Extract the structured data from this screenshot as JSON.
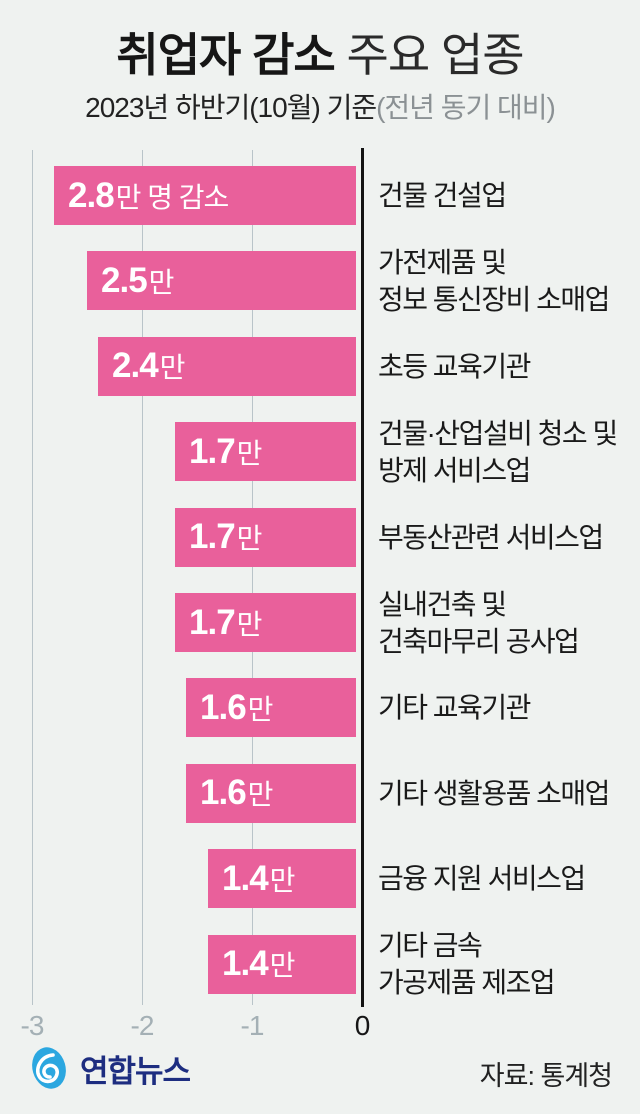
{
  "title": {
    "bold": "취업자 감소",
    "light": " 주요 업종"
  },
  "subtitle": {
    "main": "2023년 하반기(10월) 기준",
    "paren": "(전년 동기 대비)"
  },
  "colors": {
    "background": "#eff2f0",
    "bar": "#e9609b",
    "grid": "#b9c4c9",
    "axis": "#131313",
    "tick_muted": "#a4b0b5",
    "tick_zero": "#161616",
    "bar_text": "#ffffff",
    "logo_blue": "#2ba7e0",
    "logo_navy": "#1d2d80"
  },
  "chart_data": {
    "type": "bar",
    "orientation": "horizontal",
    "title": "취업자 감소 주요 업종",
    "subtitle": "2023년 하반기(10월) 기준(전년 동기 대비)",
    "unit": "만 명",
    "xlim": [
      -3.3,
      0
    ],
    "grid": true,
    "x_ticks": [
      {
        "label": "-3",
        "value": -3
      },
      {
        "label": "-2",
        "value": -2
      },
      {
        "label": "-1",
        "value": -1
      },
      {
        "label": "0",
        "value": 0
      }
    ],
    "bars": [
      {
        "value": -2.8,
        "label_value": "2.8",
        "label_suffix": "만 명 감소",
        "category_lines": [
          "건물 건설업"
        ]
      },
      {
        "value": -2.5,
        "label_value": "2.5",
        "label_suffix": "만",
        "category_lines": [
          "가전제품 및",
          "정보 통신장비 소매업"
        ]
      },
      {
        "value": -2.4,
        "label_value": "2.4",
        "label_suffix": "만",
        "category_lines": [
          "초등 교육기관"
        ]
      },
      {
        "value": -1.7,
        "label_value": "1.7",
        "label_suffix": "만",
        "category_lines": [
          "건물·산업설비 청소 및",
          "방제 서비스업"
        ]
      },
      {
        "value": -1.7,
        "label_value": "1.7",
        "label_suffix": "만",
        "category_lines": [
          "부동산관련 서비스업"
        ]
      },
      {
        "value": -1.7,
        "label_value": "1.7",
        "label_suffix": "만",
        "category_lines": [
          "실내건축 및",
          "건축마무리 공사업"
        ]
      },
      {
        "value": -1.6,
        "label_value": "1.6",
        "label_suffix": "만",
        "category_lines": [
          "기타 교육기관"
        ]
      },
      {
        "value": -1.6,
        "label_value": "1.6",
        "label_suffix": "만",
        "category_lines": [
          "기타 생활용품 소매업"
        ]
      },
      {
        "value": -1.4,
        "label_value": "1.4",
        "label_suffix": "만",
        "category_lines": [
          "금융 지원 서비스업"
        ]
      },
      {
        "value": -1.4,
        "label_value": "1.4",
        "label_suffix": "만",
        "category_lines": [
          "기타 금속",
          "가공제품 제조업"
        ]
      }
    ]
  },
  "footer": {
    "logo_text": "연합뉴스",
    "source": "자료: 통계청"
  }
}
